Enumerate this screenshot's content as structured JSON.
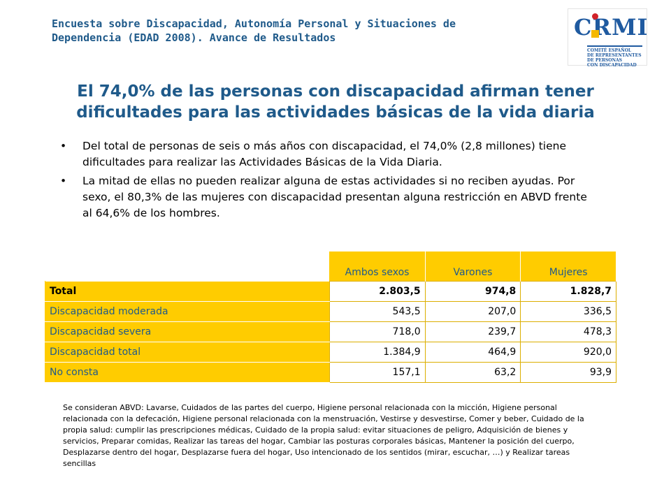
{
  "header": {
    "line1": "Encuesta sobre Discapacidad, Autonomía Personal y Situaciones de",
    "line2": "Dependencia (EDAD 2008). Avance de Resultados"
  },
  "logo": {
    "mark_c": "C",
    "mark_rest": "RMI",
    "sub": [
      "COMITÉ ESPAÑOL",
      "DE REPRESENTANTES",
      "DE PERSONAS",
      "CON DISCAPACIDAD"
    ],
    "colors": {
      "blue": "#1f5aa0",
      "red": "#d2232a",
      "yellow": "#f5b800"
    }
  },
  "title": {
    "line1": "El 74,0% de las personas con discapacidad afirman tener",
    "line2": "dificultades para las actividades básicas de la vida diaria"
  },
  "bullets": [
    "Del total de personas de seis o más años con discapacidad, el 74,0% (2,8 millones) tiene dificultades para realizar las Actividades Básicas de la Vida Diaria.",
    "La mitad de ellas no pueden realizar alguna de estas actividades si no reciben ayudas. Por sexo, el 80,3% de las mujeres con discapacidad presentan alguna restricción en ABVD frente al 64,6% de los hombres."
  ],
  "table": {
    "headers": [
      "Ambos sexos",
      "Varones",
      "Mujeres"
    ],
    "rows": [
      {
        "label": "Total",
        "values": [
          "2.803,5",
          "974,8",
          "1.828,7"
        ]
      },
      {
        "label": "Discapacidad moderada",
        "values": [
          "543,5",
          "207,0",
          "336,5"
        ]
      },
      {
        "label": "Discapacidad severa",
        "values": [
          "718,0",
          "239,7",
          "478,3"
        ]
      },
      {
        "label": "Discapacidad total",
        "values": [
          "1.384,9",
          "464,9",
          "920,0"
        ]
      },
      {
        "label": "No consta",
        "values": [
          "157,1",
          "63,2",
          "93,9"
        ]
      }
    ]
  },
  "footnote": "Se consideran ABVD: Lavarse, Cuidados de las partes del cuerpo, Higiene personal relacionada con la micción, Higiene personal relacionada con la defecación, Higiene personal relacionada con la menstruación, Vestirse y desvestirse, Comer y beber, Cuidado de la propia salud: cumplir las prescripciones médicas, Cuidado de la propia salud: evitar situaciones de peligro, Adquisición de bienes y servicios, Preparar comidas, Realizar las tareas del hogar, Cambiar las posturas corporales básicas, Mantener la posición del cuerpo, Desplazarse dentro del hogar, Desplazarse fuera del hogar, Uso intencionado de los sentidos (mirar, escuchar, …) y Realizar tareas sencillas",
  "colors": {
    "title": "#1f5a8a",
    "table_fill": "#ffcc00"
  }
}
